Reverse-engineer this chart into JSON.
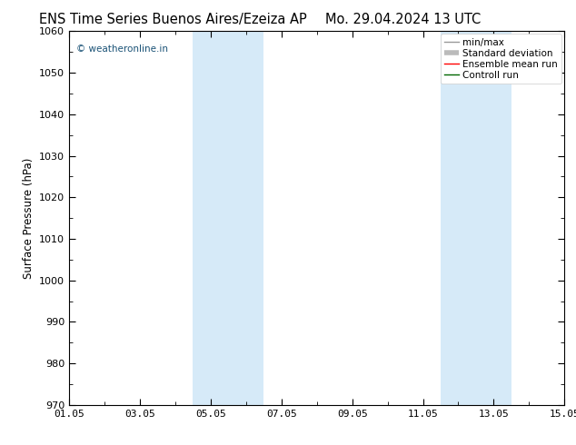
{
  "title_left": "ENS Time Series Buenos Aires/Ezeiza AP",
  "title_right": "Mo. 29.04.2024 13 UTC",
  "ylabel": "Surface Pressure (hPa)",
  "ylim": [
    970,
    1060
  ],
  "yticks": [
    970,
    980,
    990,
    1000,
    1010,
    1020,
    1030,
    1040,
    1050,
    1060
  ],
  "xlim_start": 0.0,
  "xlim_end": 14.0,
  "xtick_labels": [
    "01.05",
    "03.05",
    "05.05",
    "07.05",
    "09.05",
    "11.05",
    "13.05",
    "15.05"
  ],
  "xtick_positions": [
    0,
    2,
    4,
    6,
    8,
    10,
    12,
    14
  ],
  "shade_bands": [
    {
      "x_start": 3.5,
      "x_end": 5.5
    },
    {
      "x_start": 10.5,
      "x_end": 12.5
    }
  ],
  "shade_color": "#d6eaf8",
  "watermark_text": "© weatheronline.in",
  "watermark_color": "#1a5276",
  "legend_labels": [
    "min/max",
    "Standard deviation",
    "Ensemble mean run",
    "Controll run"
  ],
  "legend_colors": [
    "#999999",
    "#bbbbbb",
    "#ff0000",
    "#006600"
  ],
  "bg_color": "#ffffff",
  "plot_bg_color": "#ffffff",
  "title_fontsize": 10.5,
  "axis_label_fontsize": 8.5,
  "tick_fontsize": 8,
  "watermark_fontsize": 7.5,
  "legend_fontsize": 7.5
}
